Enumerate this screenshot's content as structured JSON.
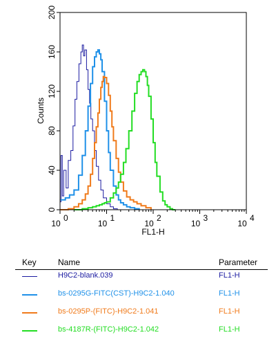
{
  "chart_data": {
    "type": "line",
    "title": "",
    "xlabel": "FL1-H",
    "ylabel": "Counts",
    "x_scale": "log",
    "xlim": [
      1,
      10000
    ],
    "ylim": [
      0,
      200
    ],
    "x_tick_labels": [
      {
        "base": "10",
        "exp": "0"
      },
      {
        "base": "10",
        "exp": "1"
      },
      {
        "base": "10",
        "exp": "2"
      },
      {
        "base": "10",
        "exp": "3"
      },
      {
        "base": "10",
        "exp": "4"
      }
    ],
    "x_tick_values": [
      1,
      10,
      100,
      1000,
      10000
    ],
    "y_ticks": [
      0,
      40,
      80,
      120,
      160,
      200
    ],
    "grid": false,
    "series": [
      {
        "name": "H9C2-blank.039",
        "color": "#1a1aa0",
        "x": [
          1.0,
          1.05,
          1.12,
          1.2,
          1.35,
          1.5,
          1.7,
          1.9,
          2.1,
          2.3,
          2.55,
          2.8,
          3.0,
          3.2,
          3.4,
          3.7,
          4.0,
          4.3,
          4.6,
          5.0,
          5.5,
          6.0,
          6.7,
          7.5,
          8.5,
          10.0,
          12.0,
          14.0,
          17.0,
          20.0,
          25.0
        ],
        "y": [
          8,
          55,
          14,
          40,
          22,
          50,
          60,
          85,
          112,
          130,
          148,
          160,
          167,
          156,
          162,
          142,
          122,
          108,
          92,
          80,
          60,
          44,
          30,
          20,
          12,
          6,
          3,
          1,
          0,
          0,
          0
        ]
      },
      {
        "name": "bs-0295G-FITC(CST)-H9C2-1.040",
        "color": "#1e90e8",
        "x": [
          1.0,
          1.3,
          1.6,
          2.0,
          2.5,
          3.0,
          3.5,
          4.0,
          4.5,
          5.0,
          5.5,
          6.0,
          6.5,
          7.0,
          7.5,
          8.0,
          9.0,
          10.0,
          11.0,
          12.0,
          14.0,
          16.0,
          18.0,
          20.0,
          23.0,
          27.0,
          32.0,
          40.0,
          50.0
        ],
        "y": [
          10,
          12,
          15,
          20,
          35,
          55,
          80,
          105,
          128,
          145,
          155,
          160,
          162,
          158,
          152,
          140,
          110,
          80,
          58,
          40,
          24,
          15,
          10,
          7,
          5,
          3,
          2,
          1,
          0
        ]
      },
      {
        "name": "bs-0295P-(FITC)-H9C2-1.041",
        "color": "#f07a1a",
        "x": [
          1.0,
          1.5,
          2.0,
          2.5,
          3.0,
          3.5,
          4.0,
          4.5,
          5.0,
          5.5,
          6.0,
          6.5,
          7.0,
          7.5,
          8.0,
          8.5,
          9.0,
          10.0,
          11.0,
          12.0,
          13.0,
          14.0,
          16.0,
          18.0,
          20.0,
          23.0,
          27.0,
          32.0,
          38.0,
          45.0,
          55.0,
          70.0,
          90.0
        ],
        "y": [
          0,
          1,
          3,
          6,
          10,
          16,
          24,
          36,
          52,
          68,
          84,
          98,
          112,
          124,
          130,
          135,
          134,
          128,
          116,
          100,
          84,
          70,
          52,
          38,
          28,
          19,
          13,
          10,
          8,
          6,
          4,
          2,
          0
        ]
      },
      {
        "name": "bs-4187R-(FITC)-H9C2-1.042",
        "color": "#22dd22",
        "x": [
          2.0,
          3.0,
          4.0,
          5.0,
          6.0,
          7.0,
          8.0,
          9.0,
          10.0,
          12.0,
          14.0,
          16.0,
          18.0,
          20.0,
          23.0,
          26.0,
          30.0,
          35.0,
          40.0,
          45.0,
          50.0,
          55.0,
          60.0,
          65.0,
          70.0,
          75.0,
          80.0,
          90.0,
          100.0,
          110.0,
          120.0,
          140.0,
          160.0,
          180.0,
          200.0,
          230.0,
          260.0,
          300.0
        ],
        "y": [
          0,
          1,
          2,
          3,
          4,
          5,
          6,
          7,
          8,
          12,
          17,
          22,
          28,
          36,
          48,
          62,
          80,
          100,
          118,
          130,
          137,
          140,
          142,
          140,
          135,
          126,
          115,
          92,
          68,
          48,
          34,
          18,
          9,
          5,
          3,
          1,
          0,
          0
        ]
      }
    ]
  },
  "legend": {
    "header": {
      "key": "Key",
      "name": "Name",
      "parameter": "Parameter"
    },
    "rows": [
      {
        "name": "H9C2-blank.039",
        "parameter": "FL1-H",
        "color": "#1a1aa0"
      },
      {
        "name": "bs-0295G-FITC(CST)-H9C2-1.040",
        "parameter": "FL1-H",
        "color": "#1e90e8"
      },
      {
        "name": "bs-0295P-(FITC)-H9C2-1.041",
        "parameter": "FL1-H",
        "color": "#f07a1a"
      },
      {
        "name": "bs-4187R-(FITC)-H9C2-1.042",
        "parameter": "FL1-H",
        "color": "#22dd22"
      }
    ]
  }
}
